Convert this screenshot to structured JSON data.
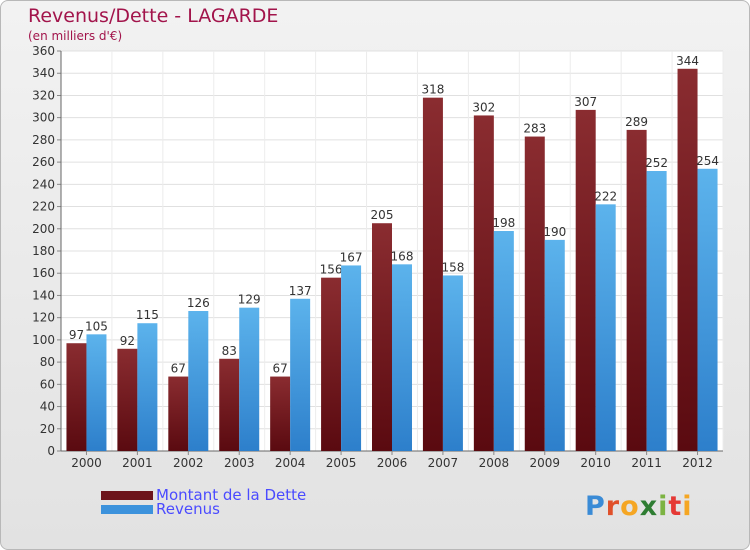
{
  "title": "Revenus/Dette - LAGARDE",
  "subtitle": "(en milliers d'€)",
  "colors": {
    "title": "#a2144b",
    "dette_top": "#8a2c30",
    "dette_bottom": "#5a0a10",
    "revenus_top": "#5cb3ec",
    "revenus_bottom": "#2d7fcb",
    "legend_text": "#4b4bff"
  },
  "legend": [
    {
      "label": "Montant de la Dette",
      "color": "#6d141b"
    },
    {
      "label": "Revenus",
      "color": "#3c92dc"
    }
  ],
  "logo": {
    "letters": [
      "P",
      "r",
      "o",
      "x",
      "i",
      "t",
      "i"
    ],
    "colors": [
      "#3a8bd6",
      "#e0502a",
      "#f5a623",
      "#2e7d32",
      "#7cb342",
      "#e53935",
      "#f5a623"
    ]
  },
  "chart_data": {
    "type": "bar",
    "categories": [
      "2000",
      "2001",
      "2002",
      "2003",
      "2004",
      "2005",
      "2006",
      "2007",
      "2008",
      "2009",
      "2010",
      "2011",
      "2012"
    ],
    "series": [
      {
        "name": "Montant de la Dette",
        "values": [
          97,
          92,
          67,
          83,
          67,
          156,
          205,
          318,
          302,
          283,
          307,
          289,
          344
        ]
      },
      {
        "name": "Revenus",
        "values": [
          105,
          115,
          126,
          129,
          137,
          167,
          168,
          158,
          198,
          190,
          222,
          252,
          254
        ]
      }
    ],
    "ylim": [
      0,
      360
    ],
    "ytick_step": 20,
    "grid": true,
    "legend_position": "bottom-left"
  }
}
